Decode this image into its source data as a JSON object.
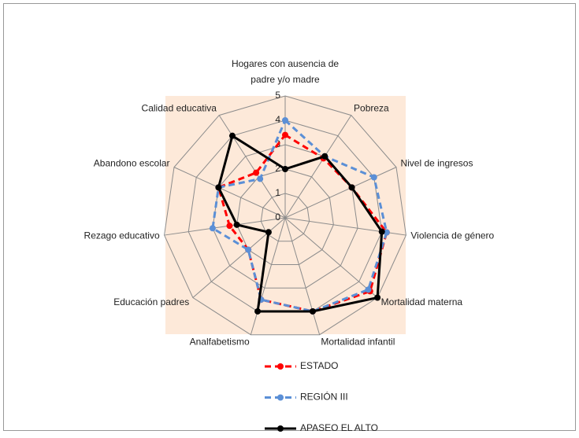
{
  "chart_data": {
    "type": "radar",
    "categories": [
      "Hogares con ausencia de padre y/o madre",
      "Pobreza",
      "Nivel de ingresos",
      "Violencia de género",
      "Mortalidad materna",
      "Mortalidad infantil",
      "Analfabetismo",
      "Educación padres",
      "Rezago educativo",
      "Abandono escolar",
      "Calidad educativa"
    ],
    "series": [
      {
        "name": "ESTADO",
        "color": "#ff0000",
        "dash": true,
        "values": [
          3.4,
          2.9,
          3.0,
          4.2,
          4.6,
          4.0,
          3.5,
          2.0,
          2.3,
          3.0,
          2.2
        ]
      },
      {
        "name": "REGIÓN III",
        "color": "#5b8fd6",
        "dash": true,
        "values": [
          4.0,
          3.0,
          4.0,
          4.2,
          4.5,
          4.0,
          3.5,
          2.0,
          3.0,
          3.0,
          1.9
        ]
      },
      {
        "name": "APASEO EL ALTO",
        "color": "#000000",
        "dash": false,
        "values": [
          2.0,
          3.0,
          3.0,
          4.0,
          5.0,
          4.0,
          4.0,
          0.9,
          2.0,
          3.0,
          4.0
        ]
      }
    ],
    "ylim": [
      0,
      5
    ],
    "yticks": [
      0,
      1,
      2,
      3,
      4,
      5
    ],
    "grid": true,
    "legend": "bottom"
  }
}
